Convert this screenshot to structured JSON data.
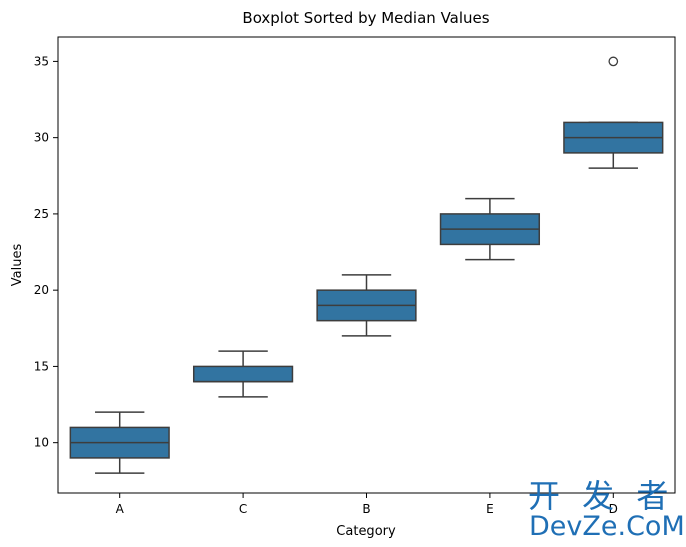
{
  "chart_data": {
    "type": "box",
    "title": "Boxplot Sorted by Median Values",
    "xlabel": "Category",
    "ylabel": "Values",
    "ylim": [
      6.7,
      36.6
    ],
    "yticks": [
      10,
      15,
      20,
      25,
      30,
      35
    ],
    "categories": [
      "A",
      "C",
      "B",
      "E",
      "D"
    ],
    "boxes": [
      {
        "category": "A",
        "whisker_low": 8,
        "q1": 9,
        "median": 10,
        "q3": 11,
        "whisker_high": 12,
        "outliers": []
      },
      {
        "category": "C",
        "whisker_low": 13,
        "q1": 14,
        "median": 14,
        "q3": 15,
        "whisker_high": 16,
        "outliers": []
      },
      {
        "category": "B",
        "whisker_low": 17,
        "q1": 18,
        "median": 19,
        "q3": 20,
        "whisker_high": 21,
        "outliers": []
      },
      {
        "category": "E",
        "whisker_low": 22,
        "q1": 23,
        "median": 24,
        "q3": 25,
        "whisker_high": 26,
        "outliers": []
      },
      {
        "category": "D",
        "whisker_low": 28,
        "q1": 29,
        "median": 30,
        "q3": 31,
        "whisker_high": 31,
        "outliers": [
          35
        ]
      }
    ],
    "grid": false,
    "legend": "none",
    "colors": {
      "box_fill": "#3274a1",
      "line": "#3d3d3d",
      "axis": "#000000"
    }
  },
  "watermark": {
    "top": "开 发 者",
    "bottom": "DevZe.CoM"
  }
}
